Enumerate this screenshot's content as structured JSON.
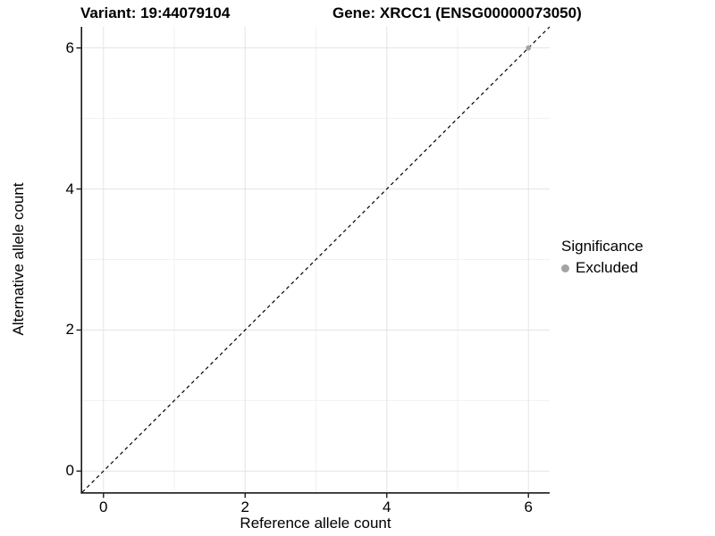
{
  "titles": {
    "variant": "Variant: 19:44079104",
    "gene": "Gene: XRCC1 (ENSG00000073050)"
  },
  "legend": {
    "title": "Significance",
    "items": [
      {
        "label": "Excluded",
        "color": "#a3a3a3"
      }
    ]
  },
  "chart_data": {
    "type": "scatter",
    "title": "Variant: 19:44079104 — Gene: XRCC1 (ENSG00000073050)",
    "xlabel": "Reference allele count",
    "ylabel": "Alternative allele count",
    "xlim": [
      -0.3,
      6.3
    ],
    "ylim": [
      -0.3,
      6.3
    ],
    "x_ticks": [
      0,
      2,
      4,
      6
    ],
    "y_ticks": [
      0,
      2,
      4,
      6
    ],
    "x_minor_ticks": [
      1,
      3,
      5
    ],
    "y_minor_ticks": [
      1,
      3,
      5
    ],
    "grid": true,
    "legend_position": "right",
    "identity_line": {
      "slope": 1,
      "intercept": 0,
      "style": "dashed",
      "color": "#000000"
    },
    "series": [
      {
        "name": "Excluded",
        "color": "#a3a3a3",
        "points": [
          [
            6,
            6
          ]
        ]
      }
    ]
  },
  "colors": {
    "background": "#ffffff",
    "panel_background": "#ffffff",
    "major_grid": "#e4e4e4",
    "minor_grid": "#f1f1f1",
    "axis_line": "#1a1a1a",
    "dashed_line": "#000000",
    "point": "#a3a3a3"
  }
}
